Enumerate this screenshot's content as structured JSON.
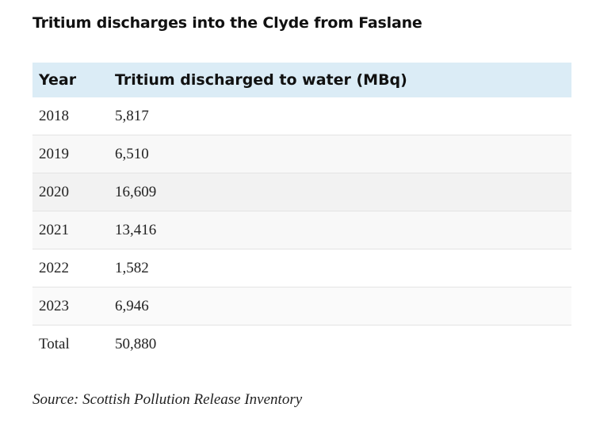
{
  "title": "Tritium discharges into the Clyde from Faslane",
  "table": {
    "header": [
      "Year",
      "Tritium discharged to water (MBq)"
    ],
    "rows": [
      [
        "2018",
        "5,817"
      ],
      [
        "2019",
        "6,510"
      ],
      [
        "2020",
        "16,609"
      ],
      [
        "2021",
        "13,416"
      ],
      [
        "2022",
        "1,582"
      ],
      [
        "2023",
        "6,946"
      ],
      [
        "Total",
        "50,880"
      ]
    ]
  },
  "source": "Source: Scottish Pollution Release Inventory"
}
